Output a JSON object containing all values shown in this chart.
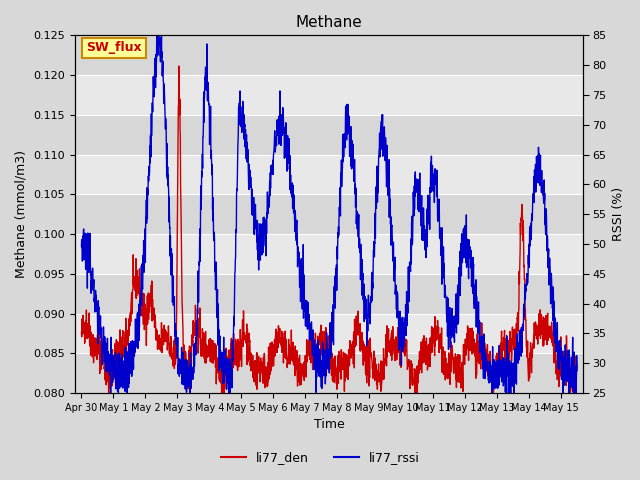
{
  "title": "Methane",
  "ylabel_left": "Methane (mmol/m3)",
  "ylabel_right": "RSSI (%)",
  "xlabel": "Time",
  "ylim_left": [
    0.08,
    0.125
  ],
  "ylim_right": [
    25,
    85
  ],
  "yticks_left": [
    0.08,
    0.085,
    0.09,
    0.095,
    0.1,
    0.105,
    0.11,
    0.115,
    0.12,
    0.125
  ],
  "yticks_right": [
    25,
    30,
    35,
    40,
    45,
    50,
    55,
    60,
    65,
    70,
    75,
    80,
    85
  ],
  "color_den": "#cc0000",
  "color_rssi": "#0000cc",
  "bg_color": "#d8d8d8",
  "plot_bg": "#e8e8e8",
  "legend_labels": [
    "li77_den",
    "li77_rssi"
  ],
  "annotation_text": "SW_flux",
  "annotation_bg": "#ffff99",
  "annotation_border": "#cc8800",
  "x_tick_labels": [
    "Apr 30",
    "May 1",
    "May 2",
    "May 3",
    "May 4",
    "May 5",
    "May 6",
    "May 7",
    "May 8",
    "May 9",
    "May 10",
    "May 11",
    "May 12",
    "May 13",
    "May 14",
    "May 15"
  ],
  "grid_color": "#ffffff",
  "line_width": 1.0
}
